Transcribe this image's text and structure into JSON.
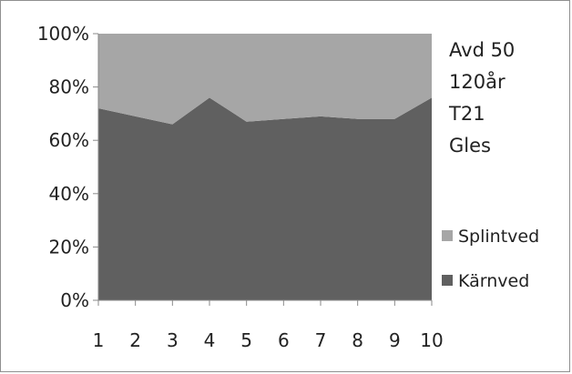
{
  "chart_data": {
    "type": "area",
    "stacked": "percent",
    "categories": [
      "1",
      "2",
      "3",
      "4",
      "5",
      "6",
      "7",
      "8",
      "9",
      "10"
    ],
    "series": [
      {
        "name": "Kärnved",
        "color": "#606060",
        "values": [
          72,
          69,
          66,
          76,
          67,
          68,
          69,
          68,
          68,
          76
        ]
      },
      {
        "name": "Splintved",
        "color": "#a6a6a6",
        "values": [
          28,
          31,
          34,
          24,
          33,
          32,
          31,
          32,
          32,
          24
        ]
      }
    ],
    "y_ticks": [
      "0%",
      "20%",
      "40%",
      "60%",
      "80%",
      "100%"
    ],
    "ylim": [
      0,
      100
    ],
    "grid": false,
    "legend": {
      "placement": "right",
      "order": [
        "Splintved",
        "Kärnved"
      ]
    },
    "annotations": [
      "Avd 50",
      "120år",
      "T21",
      "Gles"
    ]
  }
}
